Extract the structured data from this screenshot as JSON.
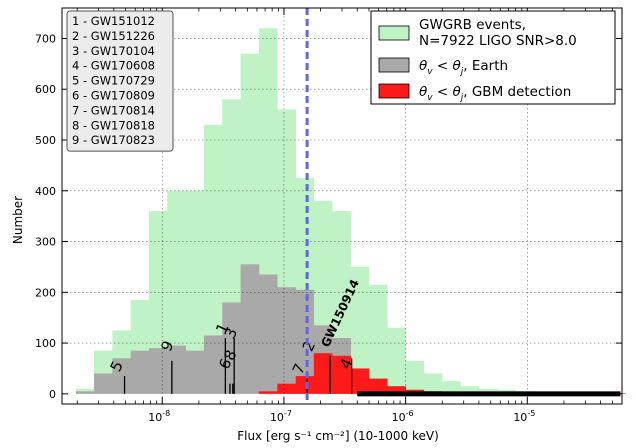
{
  "chart_data": {
    "type": "histogram",
    "title": "",
    "xlabel": "Flux [erg s⁻¹ cm⁻²] (10-1000 keV)",
    "ylabel": "Number",
    "x_scale": "log",
    "xlim": [
      1.5e-09,
      6e-05
    ],
    "ylim": [
      -20,
      760
    ],
    "grid": true,
    "y_ticks": [
      0,
      100,
      200,
      300,
      400,
      500,
      600,
      700
    ],
    "x_ticks": [
      {
        "value": 1e-08,
        "label_base": "10",
        "label_exp": "-8"
      },
      {
        "value": 1e-07,
        "label_base": "10",
        "label_exp": "-7"
      },
      {
        "value": 1e-06,
        "label_base": "10",
        "label_exp": "-6"
      },
      {
        "value": 1e-05,
        "label_base": "10",
        "label_exp": "-5"
      }
    ],
    "legend": {
      "placement": "top-right",
      "entries": [
        {
          "label_line1": "GWGRB events,",
          "label_line2": "N=7922 LIGO SNR>8.0",
          "color": "#bff2c4"
        },
        {
          "label_prefix": "θ",
          "label_sub1": "v",
          "label_mid": " < θ",
          "label_sub2": "j",
          "label_suffix": ", Earth",
          "color": "#a9a9a9"
        },
        {
          "label_prefix": "θ",
          "label_sub1": "v",
          "label_mid": " < θ",
          "label_sub2": "j",
          "label_suffix": ", GBM detection",
          "color": "#ff1a1a"
        }
      ]
    },
    "series": [
      {
        "name": "GWGRB events, N=7922 LIGO SNR>8.0",
        "color": "#bff2c4",
        "bin_edges": [
          1.95e-09,
          2.75e-09,
          3.89e-09,
          5.5e-09,
          7.78e-09,
          1.1e-08,
          1.56e-08,
          2.2e-08,
          3.11e-08,
          4.4e-08,
          6.23e-08,
          8.81e-08,
          1.25e-07,
          1.76e-07,
          2.49e-07,
          3.53e-07,
          4.99e-07,
          7.06e-07,
          9.98e-07,
          1.41e-06,
          2e-06,
          2.82e-06,
          3.99e-06,
          5.65e-06,
          7.99e-06,
          1.13e-05,
          1.6e-05,
          2.26e-05,
          3.2e-05,
          4.52e-05,
          6.39e-05
        ],
        "values": [
          10,
          85,
          125,
          185,
          360,
          400,
          400,
          530,
          580,
          670,
          720,
          560,
          425,
          380,
          360,
          250,
          215,
          130,
          65,
          40,
          25,
          15,
          10,
          8,
          5,
          4,
          3,
          2,
          2,
          1
        ]
      },
      {
        "name": "θv < θj, Earth",
        "color": "#a9a9a9",
        "bin_edges": [
          1.95e-09,
          2.75e-09,
          3.89e-09,
          5.5e-09,
          7.78e-09,
          1.1e-08,
          1.56e-08,
          2.2e-08,
          3.11e-08,
          4.4e-08,
          6.23e-08,
          8.81e-08,
          1.25e-07,
          1.76e-07,
          2.49e-07,
          3.53e-07,
          4.99e-07,
          7.06e-07,
          9.98e-07,
          1.41e-06,
          2e-06,
          2.82e-06,
          3.99e-06,
          5.65e-06,
          7.99e-06,
          1.13e-05,
          1.6e-05,
          2.26e-05,
          3.2e-05,
          4.52e-05,
          6.39e-05
        ],
        "values": [
          5,
          40,
          70,
          85,
          90,
          95,
          85,
          115,
          180,
          255,
          235,
          210,
          205,
          135,
          110,
          50,
          30,
          15,
          8,
          5,
          3,
          3,
          2,
          2,
          1,
          1,
          1,
          1,
          1,
          1
        ]
      },
      {
        "name": "θv < θj, GBM detection",
        "color": "#ff1a1a",
        "bin_edges": [
          1.95e-09,
          2.75e-09,
          3.89e-09,
          5.5e-09,
          7.78e-09,
          1.1e-08,
          1.56e-08,
          2.2e-08,
          3.11e-08,
          4.4e-08,
          6.23e-08,
          8.81e-08,
          1.25e-07,
          1.76e-07,
          2.49e-07,
          3.53e-07,
          4.99e-07,
          7.06e-07,
          9.98e-07,
          1.41e-06,
          2e-06,
          2.82e-06,
          3.99e-06,
          5.65e-06,
          7.99e-06,
          1.13e-05,
          1.6e-05,
          2.26e-05,
          3.2e-05,
          4.52e-05,
          6.39e-05
        ],
        "values": [
          0,
          0,
          0,
          0,
          0,
          0,
          0,
          0,
          0,
          0,
          5,
          20,
          35,
          80,
          75,
          50,
          30,
          15,
          8,
          5,
          3,
          3,
          2,
          2,
          1,
          1,
          1,
          1,
          1,
          1
        ]
      }
    ],
    "vline": {
      "x": 1.55e-07,
      "color": "#6464e6",
      "style": "dashed"
    },
    "gw_markers": [
      {
        "label": "1",
        "name": "GW151012",
        "flux": 3.3e-08,
        "height": 110
      },
      {
        "label": "2",
        "name": "GW151226",
        "flux": 2.4e-07,
        "height": 75
      },
      {
        "label": "3",
        "name": "GW170104",
        "flux": 3.9e-08,
        "height": 110
      },
      {
        "label": "4",
        "name": "GW170608",
        "flux": 3.6e-07,
        "height": 70
      },
      {
        "label": "5",
        "name": "GW170729",
        "flux": 4.9e-09,
        "height": 35
      },
      {
        "label": "6",
        "name": "GW170809",
        "flux": 3.6e-08,
        "height": 20
      },
      {
        "label": "7",
        "name": "GW170814",
        "flux": 1.55e-07,
        "height": 30
      },
      {
        "label": "8",
        "name": "GW170818",
        "flux": 3.8e-08,
        "height": 20
      },
      {
        "label": "9",
        "name": "GW170823",
        "flux": 1.2e-08,
        "height": 65
      }
    ],
    "annotation": {
      "text": "GW150914",
      "flux": 2.15e-07,
      "height": 90
    },
    "event_list": [
      "1 - GW151012",
      "2 - GW151226",
      "3 - GW170104",
      "4 - GW170608",
      "5 - GW170729",
      "6 - GW170809",
      "7 - GW170814",
      "8 - GW170818",
      "9 - GW170823"
    ]
  }
}
